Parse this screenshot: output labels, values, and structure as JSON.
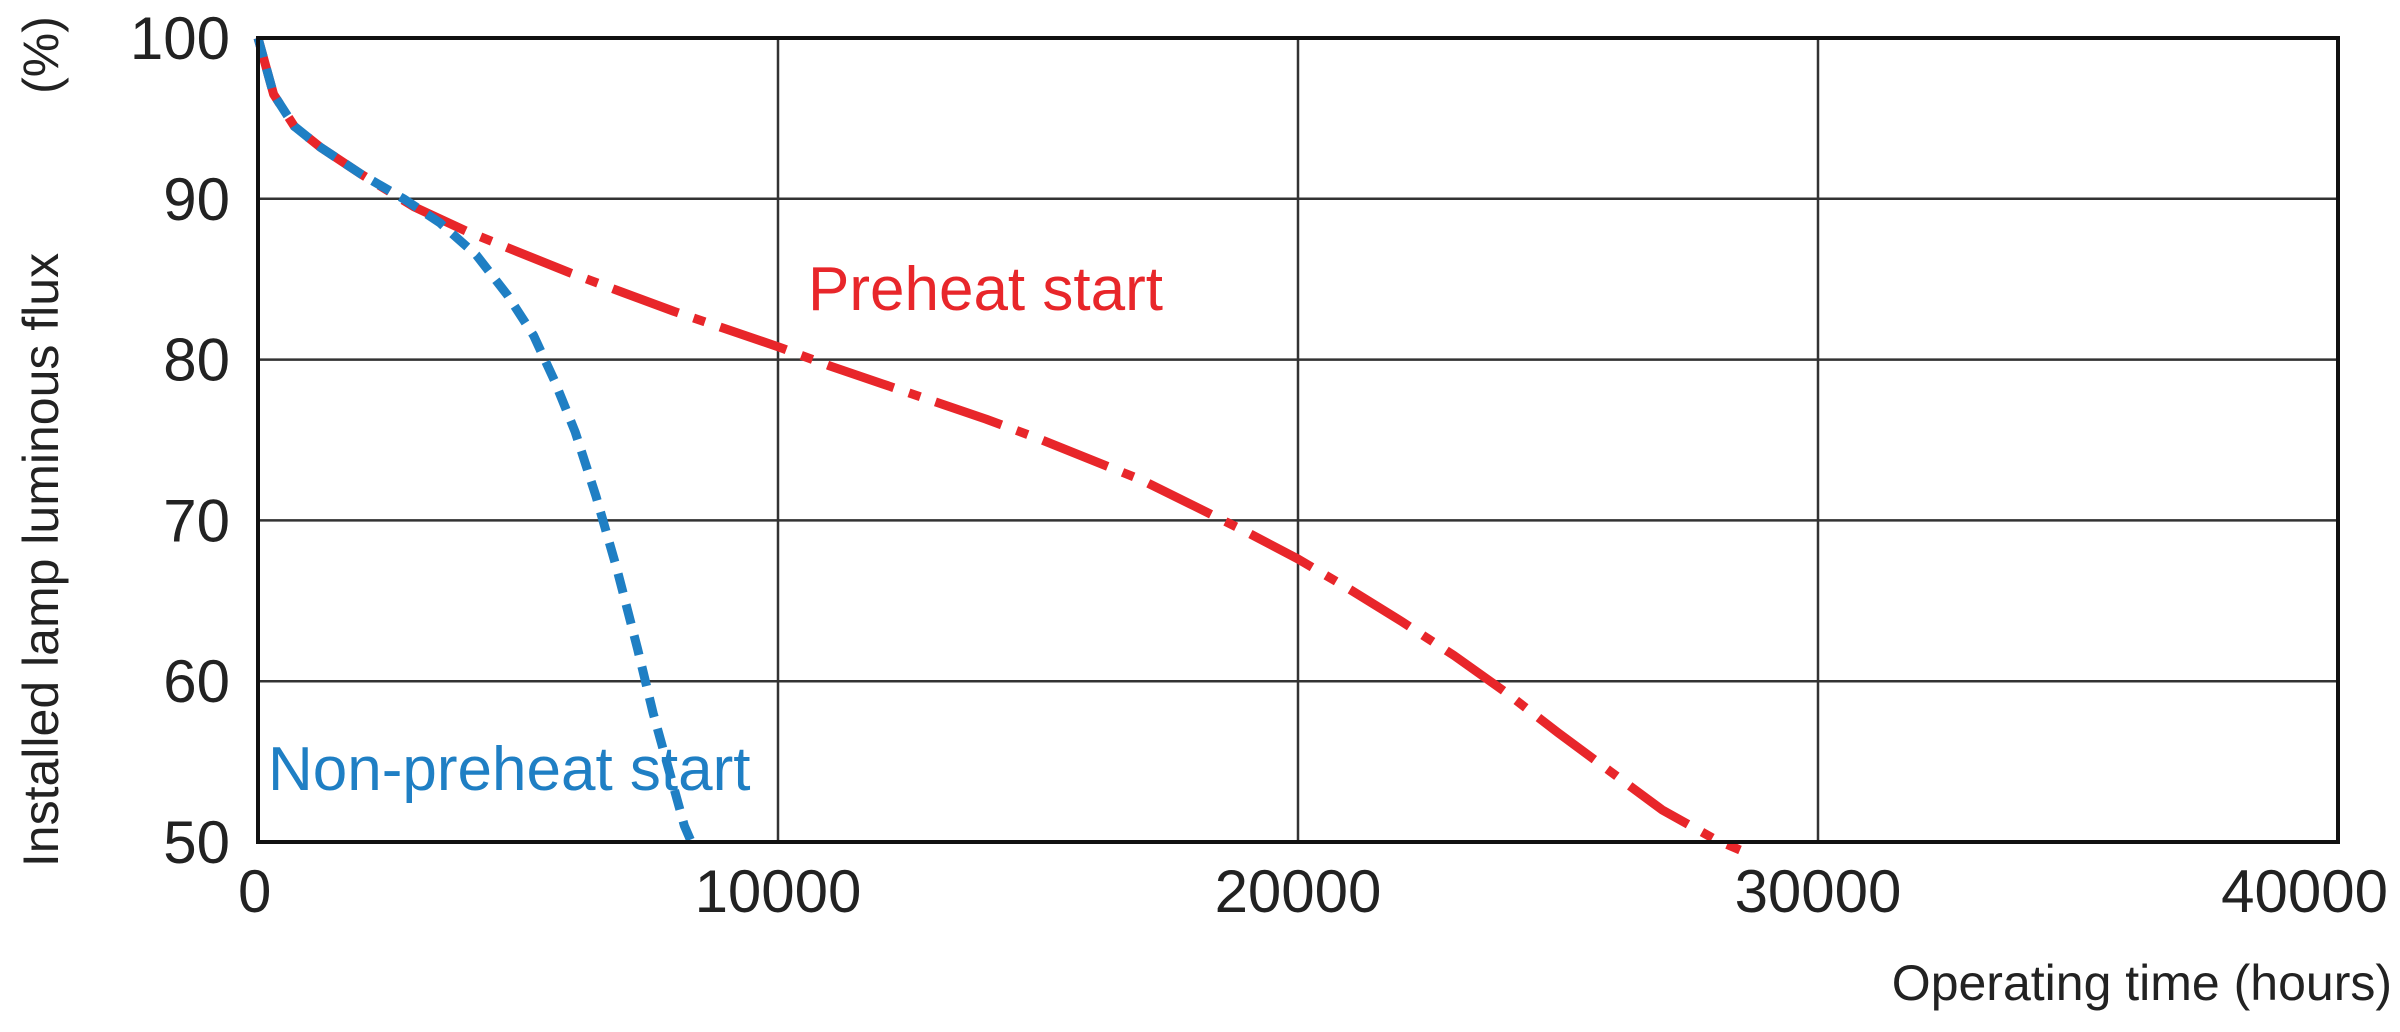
{
  "chart_data": {
    "type": "line",
    "xlabel": "Operating time (hours)",
    "ylabel": "Installed lamp luminous flux",
    "ylabel_unit": "(%)",
    "xlim": [
      0,
      40000
    ],
    "ylim": [
      50,
      100
    ],
    "x_ticks": [
      0,
      10000,
      20000,
      30000,
      40000
    ],
    "y_ticks": [
      50,
      60,
      70,
      80,
      90,
      100
    ],
    "grid": true,
    "series": [
      {
        "name": "Preheat start",
        "color": "#e8262a",
        "style": "dash-dot",
        "x": [
          0,
          300,
          700,
          1200,
          2000,
          3000,
          4000,
          5000,
          6000,
          7000,
          8000,
          9000,
          10000,
          11000,
          12000,
          13000,
          14000,
          15000,
          16000,
          17000,
          18000,
          19000,
          20000,
          21000,
          22000,
          23000,
          24000,
          25000,
          26000,
          27000,
          28000,
          28500
        ],
        "y": [
          100,
          96.5,
          94.5,
          93.2,
          91.5,
          89.5,
          88,
          86.7,
          85.4,
          84.2,
          83,
          81.9,
          80.8,
          79.6,
          78.5,
          77.4,
          76.3,
          75.1,
          73.8,
          72.5,
          70.9,
          69.3,
          67.6,
          65.7,
          63.7,
          61.6,
          59.3,
          56.8,
          54.4,
          52,
          50.2,
          49.5
        ]
      },
      {
        "name": "Non-preheat start",
        "color": "#1f7fc4",
        "style": "dashed",
        "x": [
          0,
          300,
          700,
          1200,
          2000,
          2800,
          3500,
          4200,
          4800,
          5300,
          5700,
          6100,
          6500,
          6900,
          7300,
          7600,
          7900,
          8200,
          8400
        ],
        "y": [
          100,
          96.5,
          94.5,
          93.2,
          91.5,
          90,
          88.5,
          86.5,
          84,
          81.5,
          78.7,
          75.5,
          71.5,
          67,
          62,
          58,
          54.5,
          51,
          49.5
        ]
      }
    ]
  }
}
